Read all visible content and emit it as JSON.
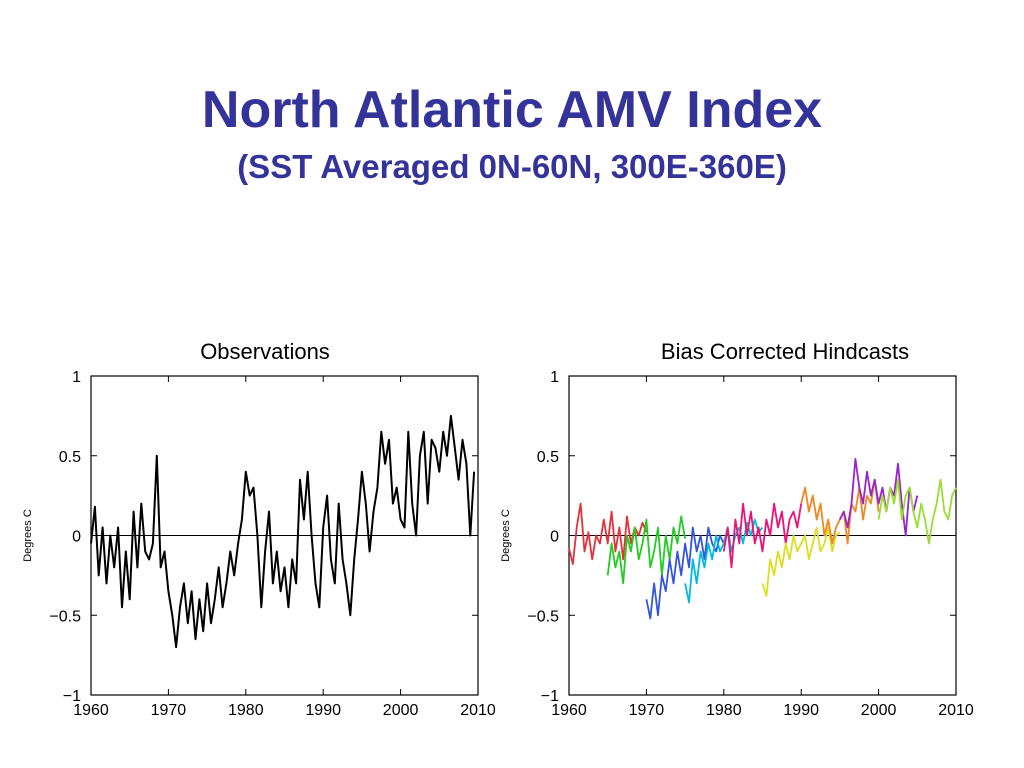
{
  "slide": {
    "title": "North Atlantic AMV Index",
    "subtitle": "(SST Averaged 0N-60N, 300E-360E)"
  },
  "chart_data": [
    {
      "type": "line",
      "title": "Observations",
      "ylabel": "Degrees C",
      "xlabel": "",
      "xlim": [
        1960,
        2010
      ],
      "ylim": [
        -1,
        1
      ],
      "xticks": [
        "1960",
        "1970",
        "1980",
        "1990",
        "2000",
        "2010"
      ],
      "yticks": [
        "1",
        "0.5",
        "0",
        "−0.5",
        "−1"
      ],
      "zero_line": true,
      "series": [
        {
          "color": "#000000",
          "x": [
            1960.0,
            1960.5,
            1961.0,
            1961.5,
            1962.0,
            1962.5,
            1963.0,
            1963.5,
            1964.0,
            1964.5,
            1965.0,
            1965.5,
            1966.0,
            1966.5,
            1967.0,
            1967.5,
            1968.0,
            1968.5,
            1969.0,
            1969.5,
            1970.0,
            1970.5,
            1971.0,
            1971.5,
            1972.0,
            1972.5,
            1973.0,
            1973.5,
            1974.0,
            1974.5,
            1975.0,
            1975.5,
            1976.0,
            1976.5,
            1977.0,
            1977.5,
            1978.0,
            1978.5,
            1979.0,
            1979.5,
            1980.0,
            1980.5,
            1981.0,
            1981.5,
            1982.0,
            1982.5,
            1983.0,
            1983.5,
            1984.0,
            1984.5,
            1985.0,
            1985.5,
            1986.0,
            1986.5,
            1987.0,
            1987.5,
            1988.0,
            1988.5,
            1989.0,
            1989.5,
            1990.0,
            1990.5,
            1991.0,
            1991.5,
            1992.0,
            1992.5,
            1993.0,
            1993.5,
            1994.0,
            1994.5,
            1995.0,
            1995.5,
            1996.0,
            1996.5,
            1997.0,
            1997.5,
            1998.0,
            1998.5,
            1999.0,
            1999.5,
            2000.0,
            2000.5,
            2001.0,
            2001.5,
            2002.0,
            2002.5,
            2003.0,
            2003.5,
            2004.0,
            2004.5,
            2005.0,
            2005.5,
            2006.0,
            2006.5,
            2007.0,
            2007.5,
            2008.0,
            2008.5,
            2009.0,
            2009.5
          ],
          "y": [
            -0.05,
            0.18,
            -0.25,
            0.05,
            -0.3,
            0.0,
            -0.2,
            0.05,
            -0.45,
            -0.1,
            -0.4,
            0.15,
            -0.2,
            0.2,
            -0.1,
            -0.15,
            -0.05,
            0.5,
            -0.2,
            -0.1,
            -0.35,
            -0.5,
            -0.7,
            -0.45,
            -0.3,
            -0.55,
            -0.35,
            -0.65,
            -0.4,
            -0.6,
            -0.3,
            -0.55,
            -0.4,
            -0.2,
            -0.45,
            -0.3,
            -0.1,
            -0.25,
            -0.05,
            0.1,
            0.4,
            0.25,
            0.3,
            0.0,
            -0.45,
            -0.1,
            0.15,
            -0.3,
            -0.1,
            -0.35,
            -0.2,
            -0.45,
            -0.15,
            -0.3,
            0.35,
            0.1,
            0.4,
            0.0,
            -0.3,
            -0.45,
            0.05,
            0.25,
            -0.15,
            -0.3,
            0.2,
            -0.15,
            -0.3,
            -0.5,
            -0.15,
            0.1,
            0.4,
            0.2,
            -0.1,
            0.15,
            0.3,
            0.65,
            0.45,
            0.6,
            0.2,
            0.3,
            0.1,
            0.05,
            0.65,
            0.2,
            0.0,
            0.5,
            0.65,
            0.2,
            0.6,
            0.55,
            0.4,
            0.65,
            0.5,
            0.75,
            0.55,
            0.35,
            0.6,
            0.45,
            0.0,
            0.4
          ]
        }
      ]
    },
    {
      "type": "line",
      "title": "Bias Corrected Hindcasts",
      "ylabel": "Degrees C",
      "xlabel": "",
      "xlim": [
        1960,
        2010
      ],
      "ylim": [
        -1,
        1
      ],
      "xticks": [
        "1960",
        "1970",
        "1980",
        "1990",
        "2000",
        "2010"
      ],
      "yticks": [
        "1",
        "0.5",
        "0",
        "−0.5",
        "−1"
      ],
      "zero_line": true,
      "series": [
        {
          "color": "#e8303a",
          "x": [
            1960,
            1960.5,
            1961,
            1961.5,
            1962,
            1962.5,
            1963,
            1963.5,
            1964,
            1964.5,
            1965,
            1965.5,
            1966,
            1966.5,
            1967,
            1967.5,
            1968,
            1968.5,
            1969,
            1969.5,
            1970
          ],
          "y": [
            -0.08,
            -0.18,
            0.05,
            0.2,
            -0.1,
            0.02,
            -0.15,
            0.0,
            -0.05,
            0.1,
            -0.05,
            0.15,
            -0.1,
            0.05,
            -0.15,
            0.12,
            -0.05,
            0.05,
            0.0,
            0.08,
            0.02
          ]
        },
        {
          "color": "#22cc22",
          "x": [
            1965,
            1965.5,
            1966,
            1966.5,
            1967,
            1967.5,
            1968,
            1968.5,
            1969,
            1969.5,
            1970,
            1970.5,
            1971,
            1971.5,
            1972,
            1972.5,
            1973,
            1973.5,
            1974,
            1974.5,
            1975
          ],
          "y": [
            -0.25,
            -0.05,
            -0.2,
            -0.1,
            -0.3,
            0.0,
            -0.1,
            0.05,
            -0.15,
            -0.05,
            0.1,
            -0.2,
            -0.1,
            0.05,
            -0.25,
            0.0,
            -0.15,
            0.05,
            -0.05,
            0.12,
            -0.02
          ]
        },
        {
          "color": "#3355dd",
          "x": [
            1970,
            1970.5,
            1971,
            1971.5,
            1972,
            1972.5,
            1973,
            1973.5,
            1974,
            1974.5,
            1975,
            1975.5,
            1976,
            1976.5,
            1977,
            1977.5,
            1978,
            1978.5,
            1979,
            1979.5,
            1980
          ],
          "y": [
            -0.4,
            -0.52,
            -0.3,
            -0.5,
            -0.25,
            -0.35,
            -0.15,
            -0.3,
            -0.1,
            -0.25,
            -0.05,
            -0.2,
            0.05,
            -0.1,
            0.0,
            -0.15,
            0.05,
            -0.05,
            -0.1,
            0.0,
            -0.05
          ]
        },
        {
          "color": "#00bbdd",
          "x": [
            1975,
            1975.5,
            1976,
            1976.5,
            1977,
            1977.5,
            1978,
            1978.5,
            1979,
            1979.5,
            1980,
            1980.5,
            1981,
            1981.5,
            1982,
            1982.5,
            1983,
            1983.5,
            1984,
            1984.5,
            1985
          ],
          "y": [
            -0.3,
            -0.42,
            -0.15,
            -0.3,
            -0.1,
            -0.2,
            -0.05,
            -0.15,
            0.0,
            -0.1,
            -0.05,
            0.05,
            -0.1,
            0.0,
            0.05,
            -0.05,
            0.08,
            0.0,
            0.1,
            0.02,
            0.05
          ]
        },
        {
          "color": "#ee1177",
          "x": [
            1980,
            1980.5,
            1981,
            1981.5,
            1982,
            1982.5,
            1983,
            1983.5,
            1984,
            1984.5,
            1985,
            1985.5,
            1986,
            1986.5,
            1987,
            1987.5,
            1988,
            1988.5,
            1989,
            1989.5,
            1990
          ],
          "y": [
            -0.1,
            0.05,
            -0.2,
            0.1,
            -0.05,
            0.2,
            0.0,
            0.15,
            -0.05,
            0.05,
            -0.1,
            0.1,
            0.0,
            0.2,
            0.05,
            0.15,
            -0.05,
            0.1,
            0.15,
            0.05,
            0.2
          ]
        },
        {
          "color": "#dddd22",
          "x": [
            1985,
            1985.5,
            1986,
            1986.5,
            1987,
            1987.5,
            1988,
            1988.5,
            1989,
            1989.5,
            1990,
            1990.5,
            1991,
            1991.5,
            1992,
            1992.5,
            1993,
            1993.5,
            1994,
            1994.5,
            1995
          ],
          "y": [
            -0.3,
            -0.38,
            -0.15,
            -0.25,
            -0.1,
            -0.2,
            -0.05,
            -0.15,
            0.0,
            -0.1,
            -0.05,
            0.0,
            -0.15,
            -0.05,
            0.05,
            -0.1,
            -0.05,
            0.05,
            -0.1,
            0.0,
            0.02
          ]
        },
        {
          "color": "#ee8822",
          "x": [
            1990,
            1990.5,
            1991,
            1991.5,
            1992,
            1992.5,
            1993,
            1993.5,
            1994,
            1994.5,
            1995,
            1995.5,
            1996,
            1996.5,
            1997,
            1997.5,
            1998,
            1998.5,
            1999,
            1999.5,
            2000
          ],
          "y": [
            0.2,
            0.3,
            0.15,
            0.25,
            0.1,
            0.2,
            0.0,
            0.1,
            -0.05,
            0.05,
            0.1,
            0.15,
            -0.05,
            0.2,
            0.15,
            0.3,
            0.1,
            0.25,
            0.2,
            0.35,
            0.15
          ]
        },
        {
          "color": "#9922cc",
          "x": [
            1995,
            1995.5,
            1996,
            1996.5,
            1997,
            1997.5,
            1998,
            1998.5,
            1999,
            1999.5,
            2000,
            2000.5,
            2001,
            2001.5,
            2002,
            2002.5,
            2003,
            2003.5,
            2004,
            2004.5,
            2005
          ],
          "y": [
            0.1,
            0.15,
            0.05,
            0.2,
            0.48,
            0.3,
            0.2,
            0.4,
            0.25,
            0.35,
            0.2,
            0.3,
            0.15,
            0.3,
            0.25,
            0.45,
            0.2,
            0.0,
            0.3,
            0.15,
            0.25
          ]
        },
        {
          "color": "#99dd33",
          "x": [
            2000,
            2000.5,
            2001,
            2001.5,
            2002,
            2002.5,
            2003,
            2003.5,
            2004,
            2004.5,
            2005,
            2005.5,
            2006,
            2006.5,
            2007,
            2007.5,
            2008,
            2008.5,
            2009,
            2009.5,
            2010
          ],
          "y": [
            0.1,
            0.25,
            0.15,
            0.3,
            0.2,
            0.35,
            0.1,
            0.25,
            0.3,
            0.15,
            0.05,
            0.2,
            0.1,
            -0.05,
            0.1,
            0.2,
            0.35,
            0.15,
            0.1,
            0.25,
            0.3
          ]
        }
      ]
    }
  ]
}
